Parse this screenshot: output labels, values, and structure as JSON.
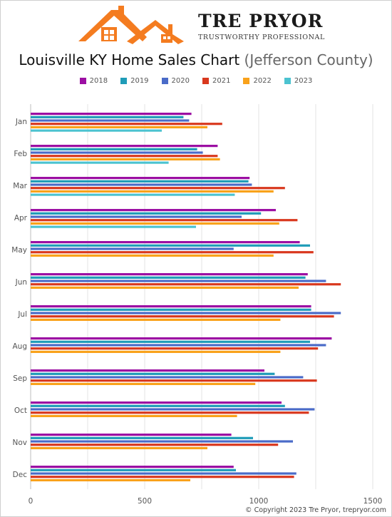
{
  "header": {
    "brand_name": "TRE PRYOR",
    "brand_tagline": "TRUSTWORTHY PROFESSIONAL",
    "title_main": "Louisville KY Home Sales Chart",
    "title_sub": "(Jefferson County)"
  },
  "colors": {
    "logo_orange": "#F47C20",
    "grid": "#e3e3e3"
  },
  "chart_data": {
    "type": "bar",
    "orientation": "horizontal",
    "categories": [
      "Jan",
      "Feb",
      "Mar",
      "Apr",
      "May",
      "Jun",
      "Jul",
      "Aug",
      "Sep",
      "Oct",
      "Nov",
      "Dec"
    ],
    "series": [
      {
        "name": "2018",
        "color": "#9C0FA3",
        "values": [
          705,
          820,
          960,
          1075,
          1180,
          1215,
          1230,
          1320,
          1025,
          1100,
          880,
          890
        ]
      },
      {
        "name": "2019",
        "color": "#1F9CB8",
        "values": [
          670,
          730,
          955,
          1010,
          1225,
          1205,
          1230,
          1225,
          1070,
          1115,
          975,
          900
        ]
      },
      {
        "name": "2020",
        "color": "#4A6BC8",
        "values": [
          695,
          755,
          970,
          925,
          890,
          1295,
          1360,
          1295,
          1195,
          1245,
          1150,
          1165
        ]
      },
      {
        "name": "2021",
        "color": "#D9381E",
        "values": [
          840,
          820,
          1115,
          1170,
          1240,
          1360,
          1330,
          1260,
          1255,
          1220,
          1085,
          1155
        ]
      },
      {
        "name": "2022",
        "color": "#F9A21B",
        "values": [
          775,
          830,
          1065,
          1090,
          1065,
          1175,
          1095,
          1095,
          985,
          905,
          775,
          700
        ]
      },
      {
        "name": "2023",
        "color": "#4CC3D0",
        "values": [
          575,
          605,
          895,
          725,
          null,
          null,
          null,
          null,
          null,
          null,
          null,
          null
        ]
      }
    ],
    "xlim": [
      0,
      1500
    ],
    "xticks": [
      0,
      500,
      1000,
      1500
    ],
    "grid": true,
    "legend": "top"
  },
  "footer": {
    "copyright": "© Copyright 2023 Tre Pryor, trepryor.com"
  }
}
